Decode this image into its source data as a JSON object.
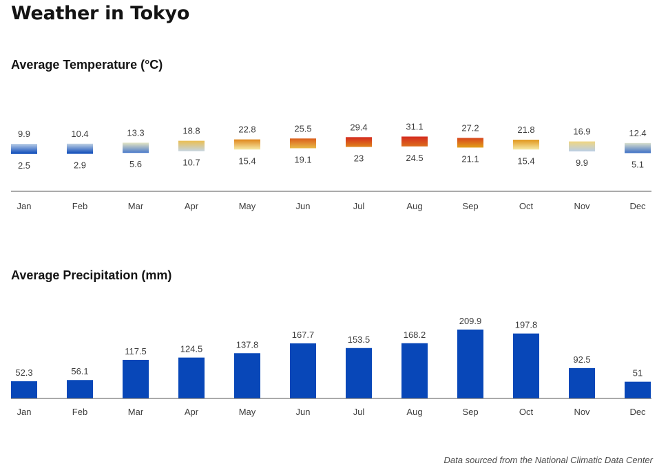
{
  "title": "Weather in Tokyo",
  "footer": "Data sourced from the National Climatic Data Center",
  "colors": {
    "precip_bar": "#0847b8",
    "axis": "#555555",
    "cold": "#0847b8",
    "mild": "#f7efb0",
    "warm": "#e2a11a",
    "hot": "#d42a1e"
  },
  "chart_data": [
    {
      "type": "bar",
      "title": "Average Temperature (°C)",
      "categories": [
        "Jan",
        "Feb",
        "Mar",
        "Apr",
        "May",
        "Jun",
        "Jul",
        "Aug",
        "Sep",
        "Oct",
        "Nov",
        "Dec"
      ],
      "series": [
        {
          "name": "",
          "values": [
            9.9,
            10.4,
            13.3,
            18.8,
            22.8,
            25.5,
            29.4,
            31.1,
            27.2,
            21.8,
            16.9,
            12.4
          ]
        },
        {
          "name": "",
          "values": [
            2.5,
            2.9,
            5.6,
            10.7,
            15.4,
            19.1,
            23,
            24.5,
            21.1,
            15.4,
            9.9,
            5.1
          ]
        }
      ],
      "grid": false,
      "legend": "none"
    },
    {
      "type": "bar",
      "title": "Average Precipitation (mm)",
      "categories": [
        "Jan",
        "Feb",
        "Mar",
        "Apr",
        "May",
        "Jun",
        "Jul",
        "Aug",
        "Sep",
        "Oct",
        "Nov",
        "Dec"
      ],
      "values": [
        52.3,
        56.1,
        117.5,
        124.5,
        137.8,
        167.7,
        153.5,
        168.2,
        209.9,
        197.8,
        92.5,
        51
      ],
      "grid": false,
      "legend": "none"
    }
  ]
}
